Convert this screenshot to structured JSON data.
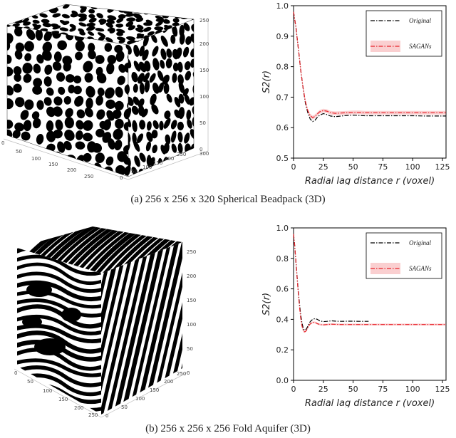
{
  "captions": {
    "a": "(a) 256 x 256 x 320 Spherical Beadpack (3D)",
    "b": "(b) 256 x 256 x 256 Fold Aquifer (3D)"
  },
  "cube_a": {
    "ticks_vertical": [
      "0",
      "50",
      "100",
      "150",
      "200",
      "250"
    ],
    "ticks_front": [
      "0",
      "50",
      "100",
      "150",
      "200",
      "250"
    ],
    "ticks_right": [
      "0",
      "50",
      "100",
      "150",
      "200",
      "250",
      "300"
    ]
  },
  "cube_b": {
    "ticks_vertical": [
      "0",
      "50",
      "100",
      "150",
      "200",
      "250"
    ],
    "ticks_front": [
      "0",
      "50",
      "100",
      "150",
      "200",
      "250"
    ],
    "ticks_right": [
      "0",
      "50",
      "100",
      "150",
      "200",
      "250"
    ]
  },
  "chart_data": [
    {
      "type": "line",
      "xlabel": "Radial lag distance r (voxel)",
      "ylabel": "S2(r)",
      "ylim": [
        0.5,
        1.0
      ],
      "xlim": [
        0,
        128
      ],
      "xticks": [
        0,
        25,
        50,
        75,
        100,
        125
      ],
      "yticks": [
        0.5,
        0.6,
        0.7,
        0.8,
        0.9,
        1.0
      ],
      "legend_position": "top-right",
      "series": [
        {
          "name": "Original",
          "color": "#000000",
          "x": [
            0,
            2,
            4,
            6,
            8,
            10,
            12,
            14,
            16,
            18,
            20,
            22,
            25,
            28,
            31,
            35,
            40,
            45,
            50,
            55,
            60,
            70,
            80,
            90,
            100,
            110,
            120,
            128
          ],
          "y": [
            0.98,
            0.93,
            0.86,
            0.79,
            0.73,
            0.68,
            0.648,
            0.628,
            0.62,
            0.624,
            0.634,
            0.641,
            0.646,
            0.643,
            0.638,
            0.636,
            0.638,
            0.64,
            0.641,
            0.64,
            0.639,
            0.639,
            0.639,
            0.639,
            0.639,
            0.638,
            0.638,
            0.638
          ]
        },
        {
          "name": "SAGANs",
          "color": "#e8232a",
          "band": 0.006,
          "x": [
            0,
            2,
            4,
            6,
            8,
            10,
            12,
            14,
            16,
            18,
            20,
            22,
            25,
            28,
            31,
            35,
            40,
            45,
            50,
            55,
            60,
            70,
            80,
            90,
            100,
            110,
            120,
            128
          ],
          "y": [
            0.98,
            0.93,
            0.86,
            0.79,
            0.73,
            0.685,
            0.655,
            0.639,
            0.633,
            0.637,
            0.645,
            0.652,
            0.656,
            0.654,
            0.649,
            0.647,
            0.648,
            0.649,
            0.65,
            0.65,
            0.649,
            0.649,
            0.649,
            0.649,
            0.649,
            0.649,
            0.649,
            0.649
          ]
        }
      ]
    },
    {
      "type": "line",
      "xlabel": "Radial lag distance r (voxel)",
      "ylabel": "S2(r)",
      "ylim": [
        0.0,
        1.0
      ],
      "xlim": [
        0,
        128
      ],
      "xticks": [
        0,
        25,
        50,
        75,
        100,
        125
      ],
      "yticks": [
        0.0,
        0.2,
        0.4,
        0.6,
        0.8,
        1.0
      ],
      "legend_position": "top-right",
      "series": [
        {
          "name": "Original",
          "color": "#000000",
          "x": [
            0,
            1,
            2,
            3,
            4,
            5,
            6,
            7,
            8,
            9,
            10,
            11,
            12,
            13,
            14,
            16,
            18,
            20,
            22,
            25,
            28,
            32,
            36,
            40,
            45,
            50,
            55,
            60,
            63
          ],
          "y": [
            0.96,
            0.88,
            0.78,
            0.68,
            0.58,
            0.5,
            0.43,
            0.38,
            0.345,
            0.33,
            0.33,
            0.34,
            0.355,
            0.37,
            0.385,
            0.4,
            0.405,
            0.4,
            0.39,
            0.385,
            0.387,
            0.39,
            0.388,
            0.387,
            0.388,
            0.388,
            0.387,
            0.387,
            0.387
          ]
        },
        {
          "name": "SAGANs",
          "color": "#e8232a",
          "band": 0.006,
          "x": [
            0,
            1,
            2,
            3,
            4,
            5,
            6,
            7,
            8,
            9,
            10,
            11,
            12,
            13,
            14,
            16,
            18,
            20,
            22,
            25,
            28,
            32,
            36,
            40,
            50,
            60,
            80,
            100,
            128
          ],
          "y": [
            0.96,
            0.88,
            0.78,
            0.67,
            0.57,
            0.48,
            0.41,
            0.36,
            0.33,
            0.318,
            0.32,
            0.33,
            0.345,
            0.36,
            0.37,
            0.38,
            0.38,
            0.372,
            0.366,
            0.364,
            0.366,
            0.368,
            0.367,
            0.366,
            0.366,
            0.366,
            0.366,
            0.366,
            0.366
          ]
        }
      ]
    }
  ]
}
